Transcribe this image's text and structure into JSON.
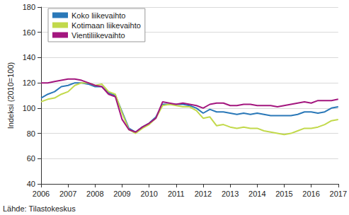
{
  "chart_data": {
    "type": "line",
    "y_label": "Indeksi (2010=100)",
    "source": "Lähde: Tilastokeskus",
    "x": [
      2006,
      2006.25,
      2006.5,
      2006.75,
      2007,
      2007.25,
      2007.5,
      2007.75,
      2008,
      2008.25,
      2008.5,
      2008.75,
      2009,
      2009.25,
      2009.5,
      2009.75,
      2010,
      2010.25,
      2010.5,
      2010.75,
      2011,
      2011.25,
      2011.5,
      2011.75,
      2012,
      2012.25,
      2012.5,
      2012.75,
      2013,
      2013.25,
      2013.5,
      2013.75,
      2014,
      2014.25,
      2014.5,
      2014.75,
      2015,
      2015.25,
      2015.5,
      2015.75,
      2016,
      2016.25,
      2016.5,
      2016.75,
      2017
    ],
    "series": [
      {
        "name": "Koko liikevaihto",
        "color": "#2a78b8",
        "values": [
          108,
          111,
          113,
          117,
          118,
          120,
          120,
          119,
          117,
          117,
          112,
          110,
          97,
          84,
          81,
          85,
          88,
          93,
          103,
          103,
          103,
          103,
          102,
          100,
          96,
          99,
          97,
          97,
          96,
          95,
          96,
          95,
          96,
          95,
          94,
          94,
          94,
          94,
          95,
          97,
          97,
          96,
          97,
          100,
          101
        ]
      },
      {
        "name": "Kotimaan liikevaihto",
        "color": "#c2d94b",
        "values": [
          105,
          107,
          108,
          111,
          113,
          118,
          120,
          120,
          118,
          119,
          113,
          111,
          96,
          83,
          80,
          84,
          87,
          92,
          102,
          103,
          102,
          101,
          101,
          98,
          92,
          93,
          86,
          87,
          85,
          84,
          85,
          84,
          84,
          82,
          81,
          80,
          79,
          80,
          82,
          84,
          84,
          85,
          87,
          90,
          91
        ]
      },
      {
        "name": "Vientiliikevaihto",
        "color": "#a3167e",
        "values": [
          120,
          120,
          121,
          122,
          123,
          123,
          122,
          120,
          118,
          117,
          111,
          109,
          91,
          83,
          81,
          85,
          88,
          92,
          105,
          104,
          103,
          104,
          103,
          102,
          100,
          103,
          104,
          104,
          102,
          102,
          103,
          103,
          102,
          102,
          102,
          101,
          102,
          103,
          104,
          105,
          104,
          106,
          106,
          106,
          107
        ]
      }
    ],
    "xlim": [
      2006,
      2017
    ],
    "xticks": [
      2006,
      2007,
      2008,
      2009,
      2010,
      2011,
      2012,
      2013,
      2014,
      2015,
      2016,
      2017
    ],
    "ylim": [
      40,
      180
    ],
    "yticks": [
      40,
      60,
      80,
      100,
      120,
      140,
      160,
      180
    ],
    "grid": true,
    "legend": "upper left"
  }
}
